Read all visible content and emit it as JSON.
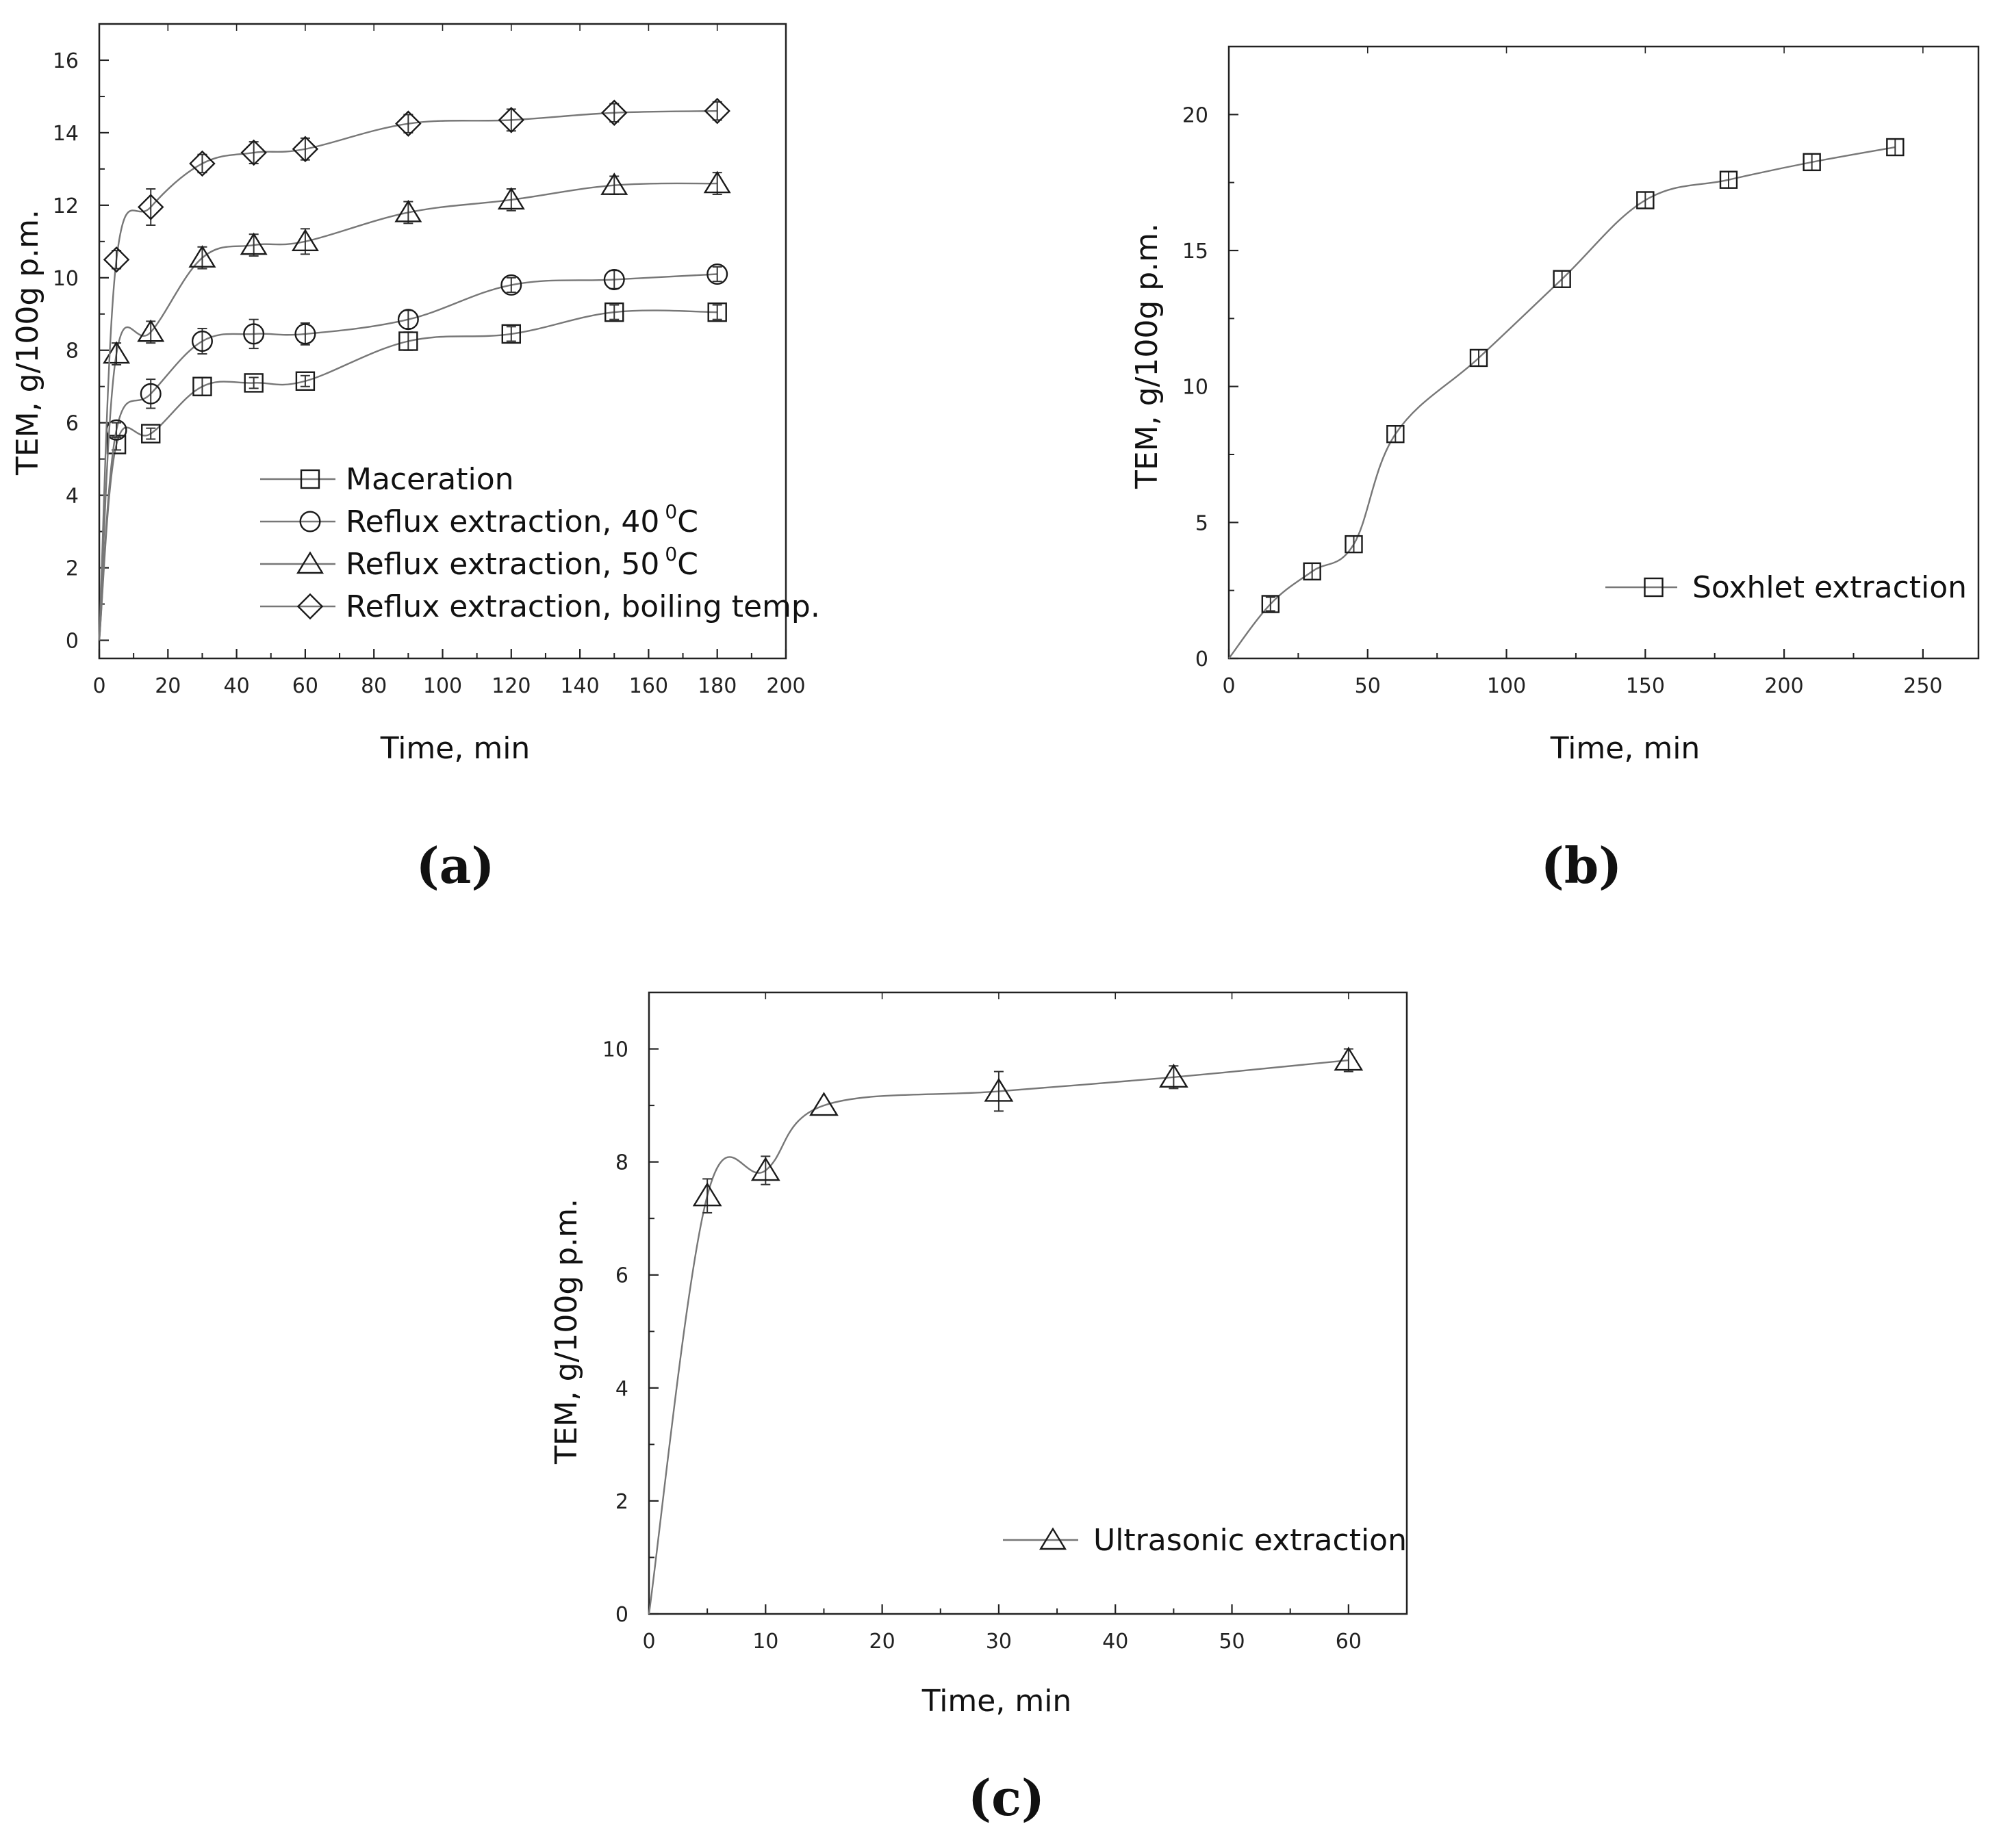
{
  "chart_data": [
    {
      "panel_label": "a",
      "type": "line",
      "xlabel": "Time, min",
      "ylabel": "TEM, g/100g p.m.",
      "xlim": [
        0,
        200
      ],
      "ylim": [
        -0.5,
        17
      ],
      "xticks": [
        0,
        20,
        40,
        60,
        80,
        100,
        120,
        140,
        160,
        180,
        200
      ],
      "yticks": [
        0,
        2,
        4,
        6,
        8,
        10,
        12,
        14,
        16
      ],
      "legend_position": "lower-right",
      "series": [
        {
          "name": "Maceration",
          "marker": "square",
          "x": [
            0,
            5,
            15,
            30,
            45,
            60,
            90,
            120,
            150,
            180
          ],
          "y": [
            0,
            5.4,
            5.7,
            7.0,
            7.1,
            7.15,
            8.25,
            8.45,
            9.05,
            9.05
          ],
          "err": [
            0,
            0.15,
            0.15,
            0.25,
            0.15,
            0.15,
            0.25,
            0.2,
            0.2,
            0.2
          ]
        },
        {
          "name": "Reflux extraction, 40 °C",
          "legend_label": "Reflux extraction, 40",
          "legend_sup": "0",
          "legend_suffix": "C",
          "marker": "circle",
          "x": [
            0,
            5,
            15,
            30,
            45,
            60,
            90,
            120,
            150,
            180
          ],
          "y": [
            0,
            5.8,
            6.8,
            8.25,
            8.45,
            8.45,
            8.85,
            9.8,
            9.95,
            10.1
          ],
          "err": [
            0,
            0.2,
            0.4,
            0.35,
            0.4,
            0.3,
            0.25,
            0.2,
            0.25,
            0.2
          ]
        },
        {
          "name": "Reflux extraction, 50 °C",
          "legend_label": "Reflux extraction, 50",
          "legend_sup": "0",
          "legend_suffix": "C",
          "marker": "triangle",
          "x": [
            0,
            5,
            15,
            30,
            45,
            60,
            90,
            120,
            150,
            180
          ],
          "y": [
            0,
            7.9,
            8.5,
            10.55,
            10.9,
            11.0,
            11.8,
            12.15,
            12.55,
            12.6
          ],
          "err": [
            0,
            0.3,
            0.3,
            0.3,
            0.3,
            0.35,
            0.3,
            0.3,
            0.25,
            0.3
          ]
        },
        {
          "name": "Reflux extraction, boiling temp.",
          "marker": "diamond",
          "x": [
            0,
            5,
            15,
            30,
            45,
            60,
            90,
            120,
            150,
            180
          ],
          "y": [
            0,
            10.5,
            11.95,
            13.15,
            13.45,
            13.55,
            14.25,
            14.35,
            14.55,
            14.6
          ],
          "err": [
            0,
            0.25,
            0.5,
            0.25,
            0.3,
            0.3,
            0.25,
            0.3,
            0.25,
            0.25
          ]
        }
      ]
    },
    {
      "panel_label": "b",
      "type": "line",
      "xlabel": "Time, min",
      "ylabel": "TEM, g/100g p.m.",
      "xlim": [
        0,
        270
      ],
      "ylim": [
        0,
        22.5
      ],
      "xticks": [
        0,
        50,
        100,
        150,
        200,
        250
      ],
      "yticks": [
        0,
        5,
        10,
        15,
        20
      ],
      "legend_position": "lower-right",
      "series": [
        {
          "name": "Soxhlet extraction",
          "marker": "square",
          "x": [
            0,
            15,
            30,
            45,
            60,
            90,
            120,
            150,
            180,
            210,
            240
          ],
          "y": [
            0,
            2.0,
            3.2,
            4.2,
            8.25,
            11.05,
            13.95,
            16.85,
            17.6,
            18.25,
            18.8
          ],
          "err": [
            0,
            0.25,
            0.3,
            0.3,
            0.3,
            0.3,
            0.3,
            0.3,
            0.3,
            0.3,
            0.3
          ]
        }
      ]
    },
    {
      "panel_label": "c",
      "type": "line",
      "xlabel": "Time, min",
      "ylabel": "TEM, g/100g p.m.",
      "xlim": [
        0,
        65
      ],
      "ylim": [
        0,
        11
      ],
      "xticks": [
        0,
        10,
        20,
        30,
        40,
        50,
        60
      ],
      "yticks": [
        0,
        2,
        4,
        6,
        8,
        10
      ],
      "legend_position": "lower-right",
      "series": [
        {
          "name": "Ultrasonic extraction",
          "marker": "triangle",
          "x": [
            0,
            5,
            10,
            15,
            30,
            45,
            60
          ],
          "y": [
            0,
            7.4,
            7.85,
            9.0,
            9.25,
            9.5,
            9.8
          ],
          "err": [
            0,
            0.3,
            0.25,
            0,
            0.35,
            0.2,
            0.2
          ]
        }
      ]
    }
  ],
  "panel_labels": [
    "(a)",
    "(b)",
    "(c)"
  ],
  "axis_color": "#222222",
  "line_color": "#777777"
}
